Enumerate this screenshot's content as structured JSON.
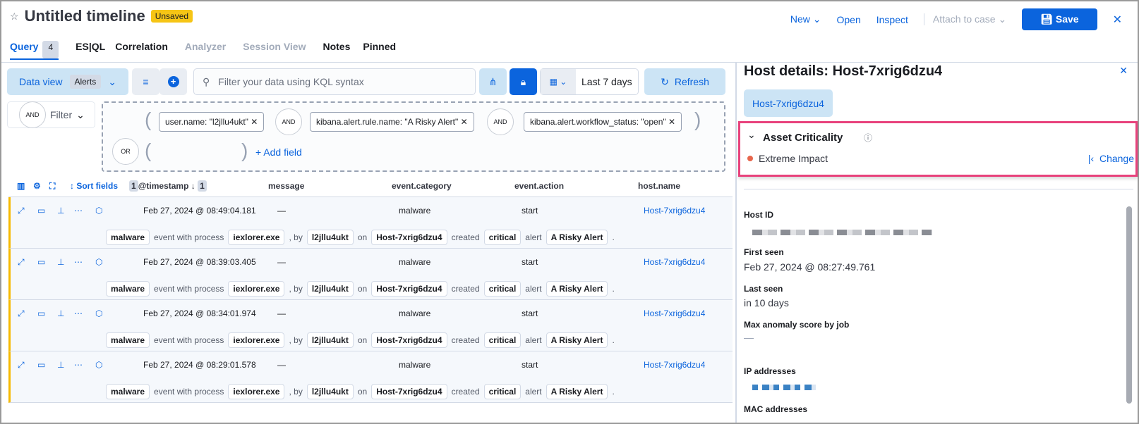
{
  "header": {
    "title": "Untitled timeline",
    "badge": "Unsaved",
    "new": "New",
    "open": "Open",
    "inspect": "Inspect",
    "attach": "Attach to case",
    "save": "Save"
  },
  "tabs": [
    {
      "label": "Query",
      "count": "4"
    },
    {
      "label": "ES|QL"
    },
    {
      "label": "Correlation"
    },
    {
      "label": "Analyzer"
    },
    {
      "label": "Session View"
    },
    {
      "label": "Notes"
    },
    {
      "label": "Pinned"
    }
  ],
  "toolbar": {
    "data_view": "Data view",
    "data_view_value": "Alerts",
    "search_placeholder": "Filter your data using KQL syntax",
    "date_range": "Last 7 days",
    "refresh": "Refresh"
  },
  "filters": {
    "and": "AND",
    "or": "OR",
    "filter": "Filter",
    "chips": [
      "user.name: \"l2jllu4ukt\"",
      "kibana.alert.rule.name: \"A Risky Alert\"",
      "kibana.alert.workflow_status: \"open\""
    ],
    "add_field": "+ Add field"
  },
  "table": {
    "sort_fields": "Sort fields",
    "sort_count": "1",
    "sort_badge": "1",
    "columns": [
      "@timestamp",
      "message",
      "event.category",
      "event.action",
      "host.name"
    ],
    "rows": [
      {
        "timestamp": "Feb 27, 2024 @ 08:49:04.181",
        "message": "—",
        "category": "malware",
        "action": "start",
        "host": "Host-7xrig6dzu4"
      },
      {
        "timestamp": "Feb 27, 2024 @ 08:39:03.405",
        "message": "—",
        "category": "malware",
        "action": "start",
        "host": "Host-7xrig6dzu4"
      },
      {
        "timestamp": "Feb 27, 2024 @ 08:34:01.974",
        "message": "—",
        "category": "malware",
        "action": "start",
        "host": "Host-7xrig6dzu4"
      },
      {
        "timestamp": "Feb 27, 2024 @ 08:29:01.578",
        "message": "—",
        "category": "malware",
        "action": "start",
        "host": "Host-7xrig6dzu4"
      }
    ],
    "summary": [
      "malware",
      "event with process",
      "iexlorer.exe",
      ", by",
      "l2jllu4ukt",
      "on",
      "Host-7xrig6dzu4",
      "created",
      "critical",
      "alert",
      "A Risky Alert",
      "."
    ]
  },
  "panel": {
    "title": "Host details: Host-7xrig6dzu4",
    "host_button": "Host-7xrig6dzu4",
    "criticality_title": "Asset Criticality",
    "criticality_value": "Extreme Impact",
    "criticality_color": "#e7664c",
    "change": "Change",
    "host_id_label": "Host ID",
    "first_seen_label": "First seen",
    "first_seen": "Feb 27, 2024 @ 08:27:49.761",
    "last_seen_label": "Last seen",
    "last_seen": "in 10 days",
    "anomaly_label": "Max anomaly score by job",
    "anomaly_value": "—",
    "ip_label": "IP addresses",
    "mac_label": "MAC addresses"
  },
  "colors": {
    "accent": "#0b64dd",
    "highlight": "#e8427c",
    "unsaved": "#f6c515",
    "row_marker": "#f6b900"
  }
}
